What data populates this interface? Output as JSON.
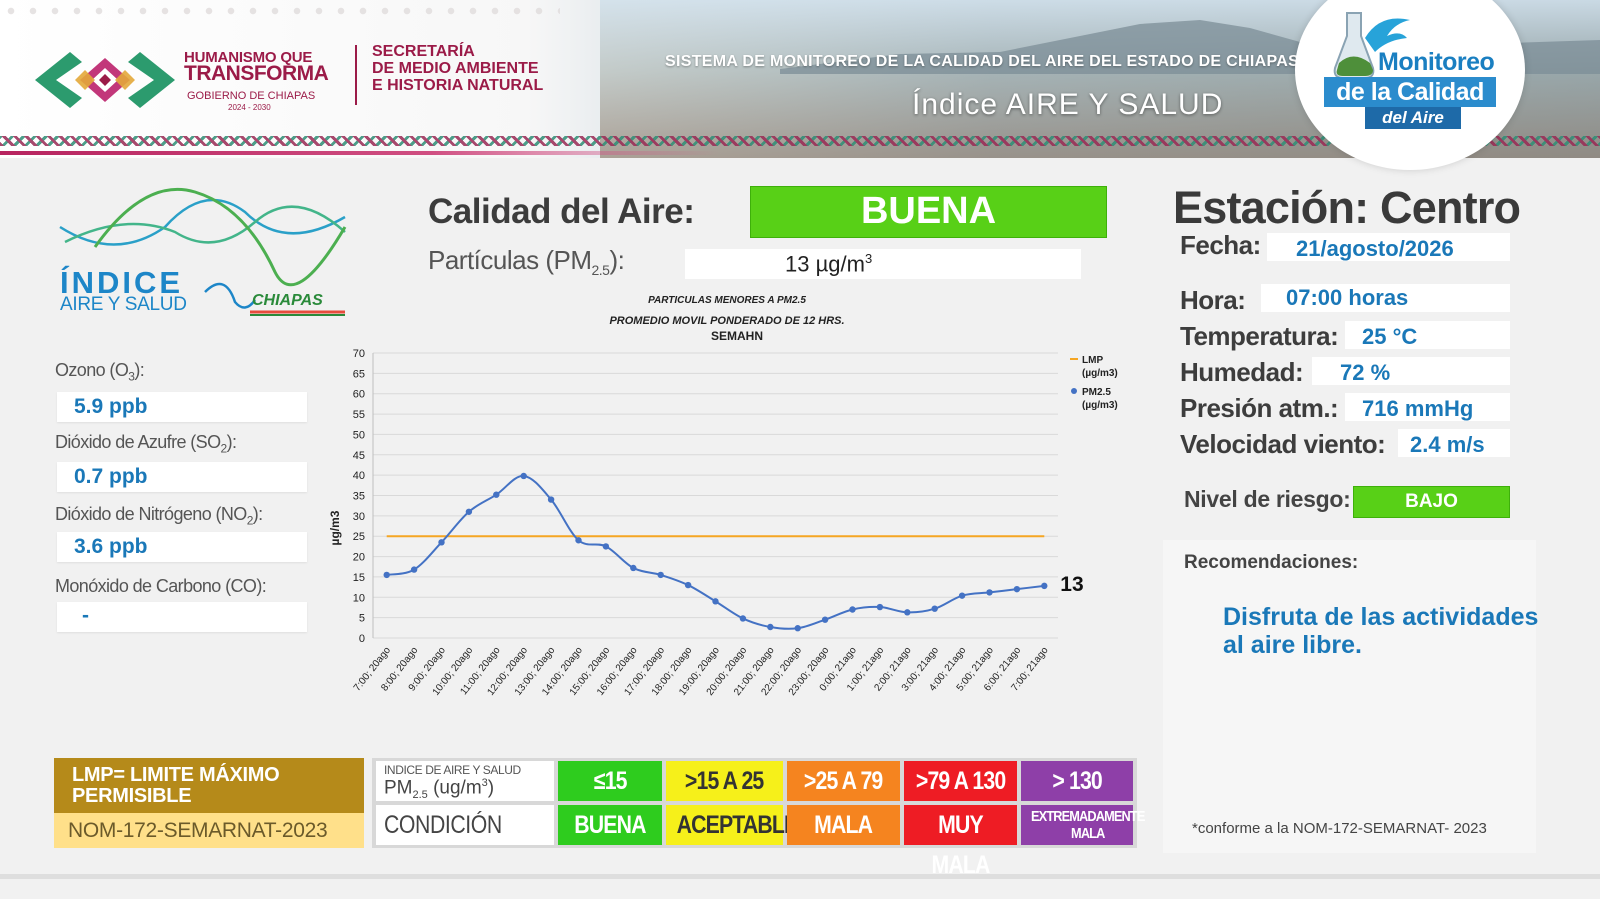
{
  "header": {
    "gov_line1": "HUMANISMO QUE",
    "gov_line2": "TRANSFORMA",
    "gov_line3": "GOBIERNO DE CHIAPAS",
    "gov_years": "2024 - 2030",
    "secretaria_line1": "SECRETARÍA",
    "secretaria_line2": "DE MEDIO AMBIENTE",
    "secretaria_line3": "E HISTORIA NATURAL",
    "system_title": "SISTEMA DE MONITOREO DE LA CALIDAD DEL AIRE DEL ESTADO DE CHIAPAS",
    "index_title": "Índice AIRE Y SALUD",
    "badge_line1": "Monitoreo",
    "badge_line2": "de la Calidad",
    "badge_line3": "del Aire"
  },
  "logo": {
    "word": "ÍNDICE",
    "sub": "AIRE Y SALUD",
    "region": "CHIAPAS"
  },
  "pollutants": [
    {
      "label": "Ozono (O",
      "sub": "3",
      "suffix": "):",
      "value": "5.9 ppb"
    },
    {
      "label": "Dióxido de Azufre (SO",
      "sub": "2",
      "suffix": "):",
      "value": "0.7 ppb"
    },
    {
      "label": "Dióxido de Nitrógeno (NO",
      "sub": "2",
      "suffix": "):",
      "value": "3.6 ppb"
    },
    {
      "label": "Monóxido de Carbono (CO):",
      "sub": "",
      "suffix": "",
      "value": "-"
    }
  ],
  "air_quality": {
    "label": "Calidad del Aire:",
    "value": "BUENA",
    "color": "#58d017",
    "particles_label": "Partículas (PM",
    "particles_sub": "2.5",
    "particles_suffix": "):",
    "particles_value": "13 µg/m",
    "particles_unit_sup": "3"
  },
  "chart_data": {
    "type": "line",
    "title_line1": "PARTICULAS MENORES A PM2.5",
    "title_line2": "PROMEDIO MOVIL PONDERADO DE 12 HRS.",
    "title_line3": "SEMAHN",
    "ylabel": "µg/m3",
    "ylim": [
      0,
      70
    ],
    "yticks": [
      0,
      5,
      10,
      15,
      20,
      25,
      30,
      35,
      40,
      45,
      50,
      55,
      60,
      65,
      70
    ],
    "grid": true,
    "legend_position": "top-right",
    "categories": [
      "7:00; 20ago",
      "8:00; 20ago",
      "9:00; 20ago",
      "10:00; 20ago",
      "11:00; 20ago",
      "12:00; 20ago",
      "13:00; 20ago",
      "14:00; 20ago",
      "15:00; 20ago",
      "16:00; 20ago",
      "17:00; 20ago",
      "18:00; 20ago",
      "19:00; 20ago",
      "20:00; 20ago",
      "21:00; 20ago",
      "22:00; 20ago",
      "23:00; 20ago",
      "0:00; 21ago",
      "1:00; 21ago",
      "2:00; 21ago",
      "3:00; 21ago",
      "4:00; 21ago",
      "5:00; 21ago",
      "6:00; 21ago",
      "7:00; 21ago"
    ],
    "series": [
      {
        "name": "LMP",
        "unit": "(µg/m3)",
        "color": "#f5a623",
        "values": [
          25,
          25,
          25,
          25,
          25,
          25,
          25,
          25,
          25,
          25,
          25,
          25,
          25,
          25,
          25,
          25,
          25,
          25,
          25,
          25,
          25,
          25,
          25,
          25,
          25
        ]
      },
      {
        "name": "PM2.5",
        "unit": "(µg/m3)",
        "color": "#4472c4",
        "values": [
          15.5,
          16.8,
          23.5,
          31,
          35.2,
          39.8,
          34,
          24,
          22.5,
          17.2,
          15.5,
          13,
          9,
          4.8,
          2.7,
          2.4,
          4.5,
          7,
          7.6,
          6.3,
          7.2,
          10.4,
          11.2,
          12,
          12.8
        ]
      }
    ],
    "last_value_label": "13"
  },
  "station": {
    "title": "Estación: Centro",
    "fecha_label": "Fecha:",
    "fecha": "21/agosto/2026",
    "hora_label": "Hora:",
    "hora": "07:00 horas",
    "temp_label": "Temperatura:",
    "temp": "25 °C",
    "hum_label": "Humedad:",
    "hum": "72 %",
    "pres_label": "Presión atm.:",
    "pres": "716 mmHg",
    "wind_label": "Velocidad viento:",
    "wind": "2.4 m/s",
    "risk_label": "Nivel de riesgo:",
    "risk": "BAJO",
    "rec_label": "Recomendaciones:",
    "rec_text": "Disfruta de las actividades al aire libre.",
    "norm_note": "*conforme a la NOM-172-SEMARNAT- 2023"
  },
  "legend": {
    "lmp_text": "LMP= LIMITE MÁXIMO PERMISIBLE",
    "norm": "NOM-172-SEMARNAT-2023",
    "index_header": "INDICE DE AIRE Y SALUD",
    "pm_label": "PM",
    "pm_sub": "2.5",
    "pm_unit": " (ug/m",
    "pm_unit_sup": "3",
    "pm_unit_end": ")",
    "condition_label": "CONDICIÓN",
    "levels": [
      {
        "range": "≤15",
        "condition": "BUENA",
        "color": "#2ecc1e",
        "text_color": "#ffffff"
      },
      {
        "range": ">15 A 25",
        "condition": "ACEPTABLE",
        "color": "#f6f01a",
        "text_color": "#333333"
      },
      {
        "range": ">25 A 79",
        "condition": "MALA",
        "color": "#f5841f",
        "text_color": "#ffffff"
      },
      {
        "range": ">79 A 130",
        "condition": "MUY MALA",
        "color": "#ee1c24",
        "text_color": "#ffffff"
      },
      {
        "range": "> 130",
        "condition": "EXTREMADAMENTE MALA",
        "color": "#8e3fa8",
        "text_color": "#ffffff"
      }
    ]
  }
}
